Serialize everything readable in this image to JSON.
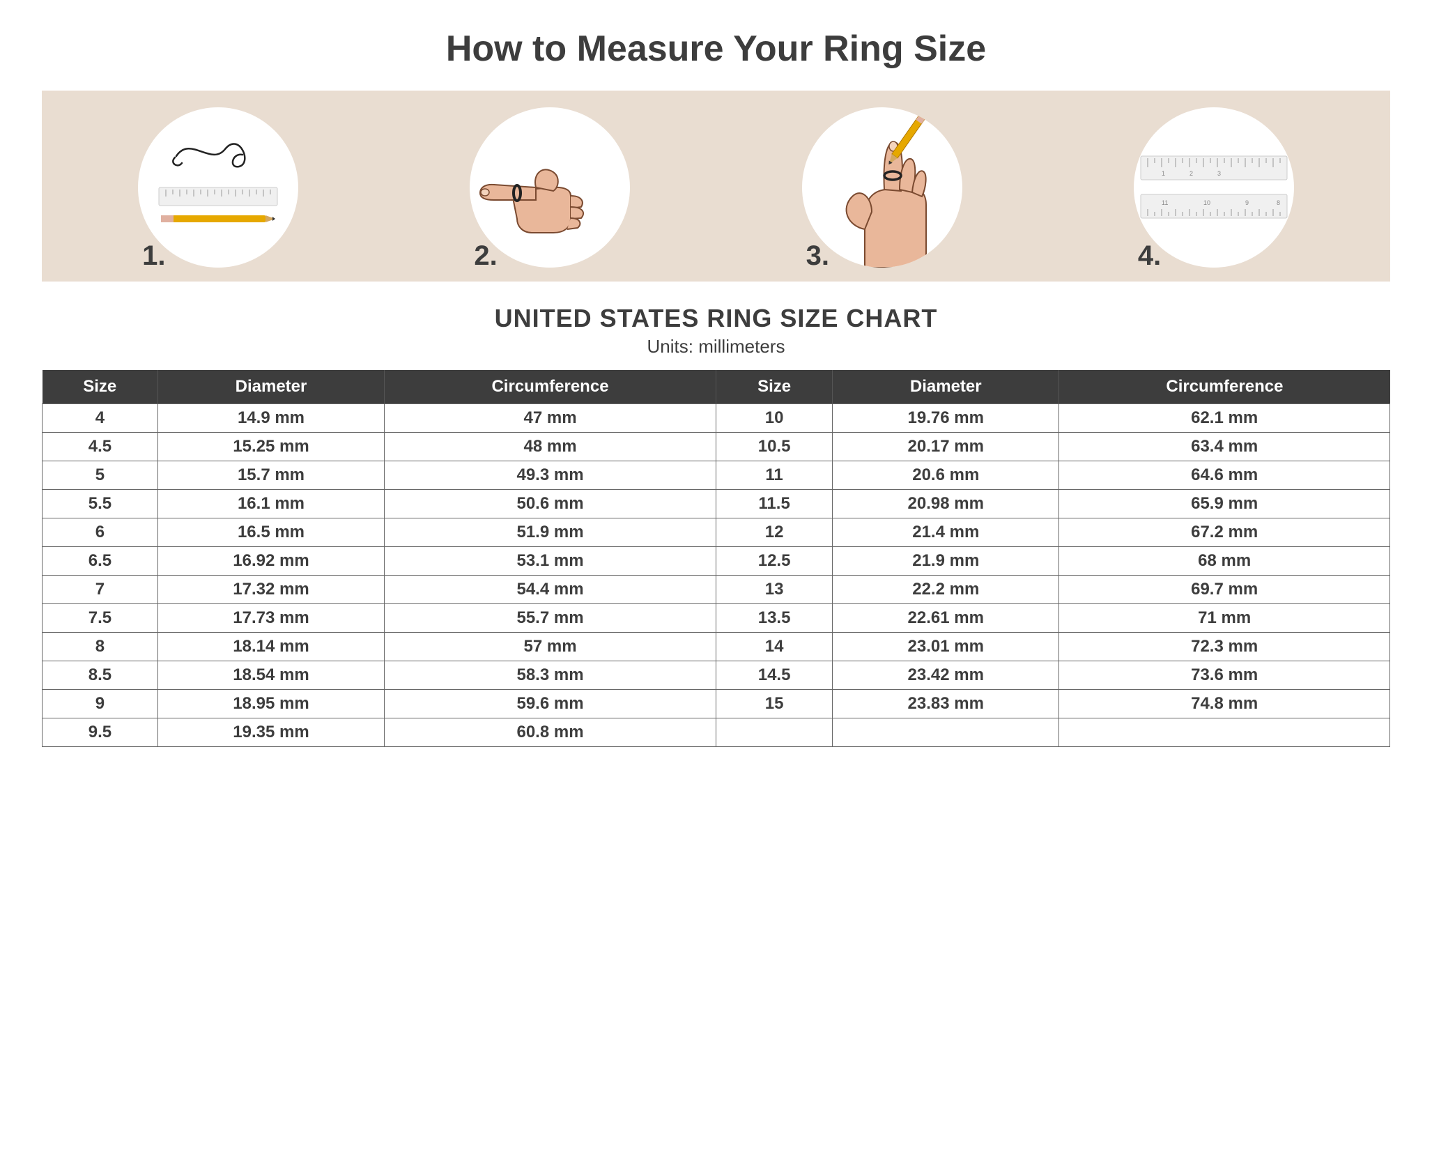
{
  "title": "How to Measure Your Ring Size",
  "steps_panel": {
    "background_color": "#e9ddd1",
    "circle_color": "#ffffff",
    "steps": [
      {
        "num": "1."
      },
      {
        "num": "2."
      },
      {
        "num": "3."
      },
      {
        "num": "4."
      }
    ]
  },
  "chart": {
    "title": "UNITED STATES RING SIZE CHART",
    "subtitle": "Units: millimeters",
    "header_bg": "#3d3d3d",
    "header_fg": "#ffffff",
    "border_color": "#666666",
    "text_color": "#3d3d3d",
    "columns": [
      "Size",
      "Diameter",
      "Circumference",
      "Size",
      "Diameter",
      "Circumference"
    ],
    "rows": [
      [
        "4",
        "14.9 mm",
        "47 mm",
        "10",
        "19.76 mm",
        "62.1 mm"
      ],
      [
        "4.5",
        "15.25 mm",
        "48 mm",
        "10.5",
        "20.17 mm",
        "63.4 mm"
      ],
      [
        "5",
        "15.7 mm",
        "49.3 mm",
        "11",
        "20.6 mm",
        "64.6 mm"
      ],
      [
        "5.5",
        "16.1 mm",
        "50.6 mm",
        "11.5",
        "20.98 mm",
        "65.9 mm"
      ],
      [
        "6",
        "16.5 mm",
        "51.9 mm",
        "12",
        "21.4 mm",
        "67.2 mm"
      ],
      [
        "6.5",
        "16.92 mm",
        "53.1 mm",
        "12.5",
        "21.9 mm",
        "68 mm"
      ],
      [
        "7",
        "17.32 mm",
        "54.4 mm",
        "13",
        "22.2 mm",
        "69.7 mm"
      ],
      [
        "7.5",
        "17.73 mm",
        "55.7 mm",
        "13.5",
        "22.61 mm",
        "71 mm"
      ],
      [
        "8",
        "18.14 mm",
        "57 mm",
        "14",
        "23.01 mm",
        "72.3 mm"
      ],
      [
        "8.5",
        "18.54 mm",
        "58.3 mm",
        "14.5",
        "23.42 mm",
        "73.6 mm"
      ],
      [
        "9",
        "18.95 mm",
        "59.6 mm",
        "15",
        "23.83 mm",
        "74.8 mm"
      ],
      [
        "9.5",
        "19.35 mm",
        "60.8 mm",
        "",
        "",
        ""
      ]
    ]
  }
}
